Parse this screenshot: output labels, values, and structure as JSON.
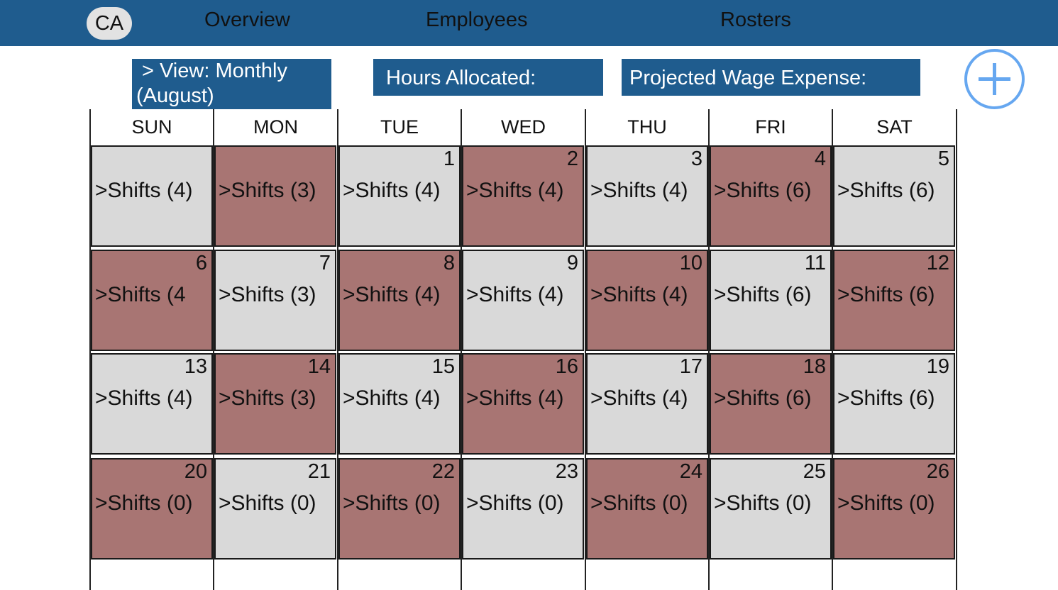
{
  "nav": {
    "avatar": "CA",
    "items": [
      "Overview",
      "Employees",
      "Rosters"
    ]
  },
  "toolbar": {
    "view_line1": ">  View: Monthly",
    "view_line2": "(August)",
    "hours_label": "Hours Allocated:",
    "wage_label": "Projected Wage Expense:"
  },
  "calendar": {
    "days": [
      "SUN",
      "MON",
      "TUE",
      "WED",
      "THU",
      "FRI",
      "SAT"
    ],
    "weeks": [
      [
        {
          "date": "",
          "shifts": ">Shifts (4)",
          "shade": "light"
        },
        {
          "date": "",
          "shifts": ">Shifts (3)",
          "shade": "dark"
        },
        {
          "date": "1",
          "shifts": ">Shifts (4)",
          "shade": "light"
        },
        {
          "date": "2",
          "shifts": ">Shifts (4)",
          "shade": "dark"
        },
        {
          "date": "3",
          "shifts": ">Shifts (4)",
          "shade": "light"
        },
        {
          "date": "4",
          "shifts": ">Shifts (6)",
          "shade": "dark"
        },
        {
          "date": "5",
          "shifts": ">Shifts (6)",
          "shade": "light"
        }
      ],
      [
        {
          "date": "6",
          "shifts": ">Shifts (4",
          "shade": "dark"
        },
        {
          "date": "7",
          "shifts": ">Shifts (3)",
          "shade": "light"
        },
        {
          "date": "8",
          "shifts": ">Shifts (4)",
          "shade": "dark"
        },
        {
          "date": "9",
          "shifts": ">Shifts (4)",
          "shade": "light"
        },
        {
          "date": "10",
          "shifts": ">Shifts (4)",
          "shade": "dark"
        },
        {
          "date": "11",
          "shifts": ">Shifts (6)",
          "shade": "light"
        },
        {
          "date": "12",
          "shifts": ">Shifts (6)",
          "shade": "dark"
        }
      ],
      [
        {
          "date": "13",
          "shifts": ">Shifts (4)",
          "shade": "light"
        },
        {
          "date": "14",
          "shifts": ">Shifts (3)",
          "shade": "dark"
        },
        {
          "date": "15",
          "shifts": ">Shifts (4)",
          "shade": "light"
        },
        {
          "date": "16",
          "shifts": ">Shifts (4)",
          "shade": "dark"
        },
        {
          "date": "17",
          "shifts": ">Shifts (4)",
          "shade": "light"
        },
        {
          "date": "18",
          "shifts": ">Shifts (6)",
          "shade": "dark"
        },
        {
          "date": "19",
          "shifts": ">Shifts (6)",
          "shade": "light"
        }
      ],
      [
        {
          "date": "20",
          "shifts": ">Shifts (0)",
          "shade": "dark"
        },
        {
          "date": "21",
          "shifts": ">Shifts (0)",
          "shade": "light"
        },
        {
          "date": "22",
          "shifts": ">Shifts (0)",
          "shade": "dark"
        },
        {
          "date": "23",
          "shifts": ">Shifts (0)",
          "shade": "light"
        },
        {
          "date": "24",
          "shifts": ">Shifts (0)",
          "shade": "dark"
        },
        {
          "date": "25",
          "shifts": ">Shifts (0)",
          "shade": "light"
        },
        {
          "date": "26",
          "shifts": ">Shifts (0)",
          "shade": "dark"
        }
      ]
    ]
  },
  "colors": {
    "header_bg": "#1f5c8e",
    "cell_light": "#d9d9d9",
    "cell_dark": "#a87573",
    "add_accent": "#66a7f0"
  }
}
